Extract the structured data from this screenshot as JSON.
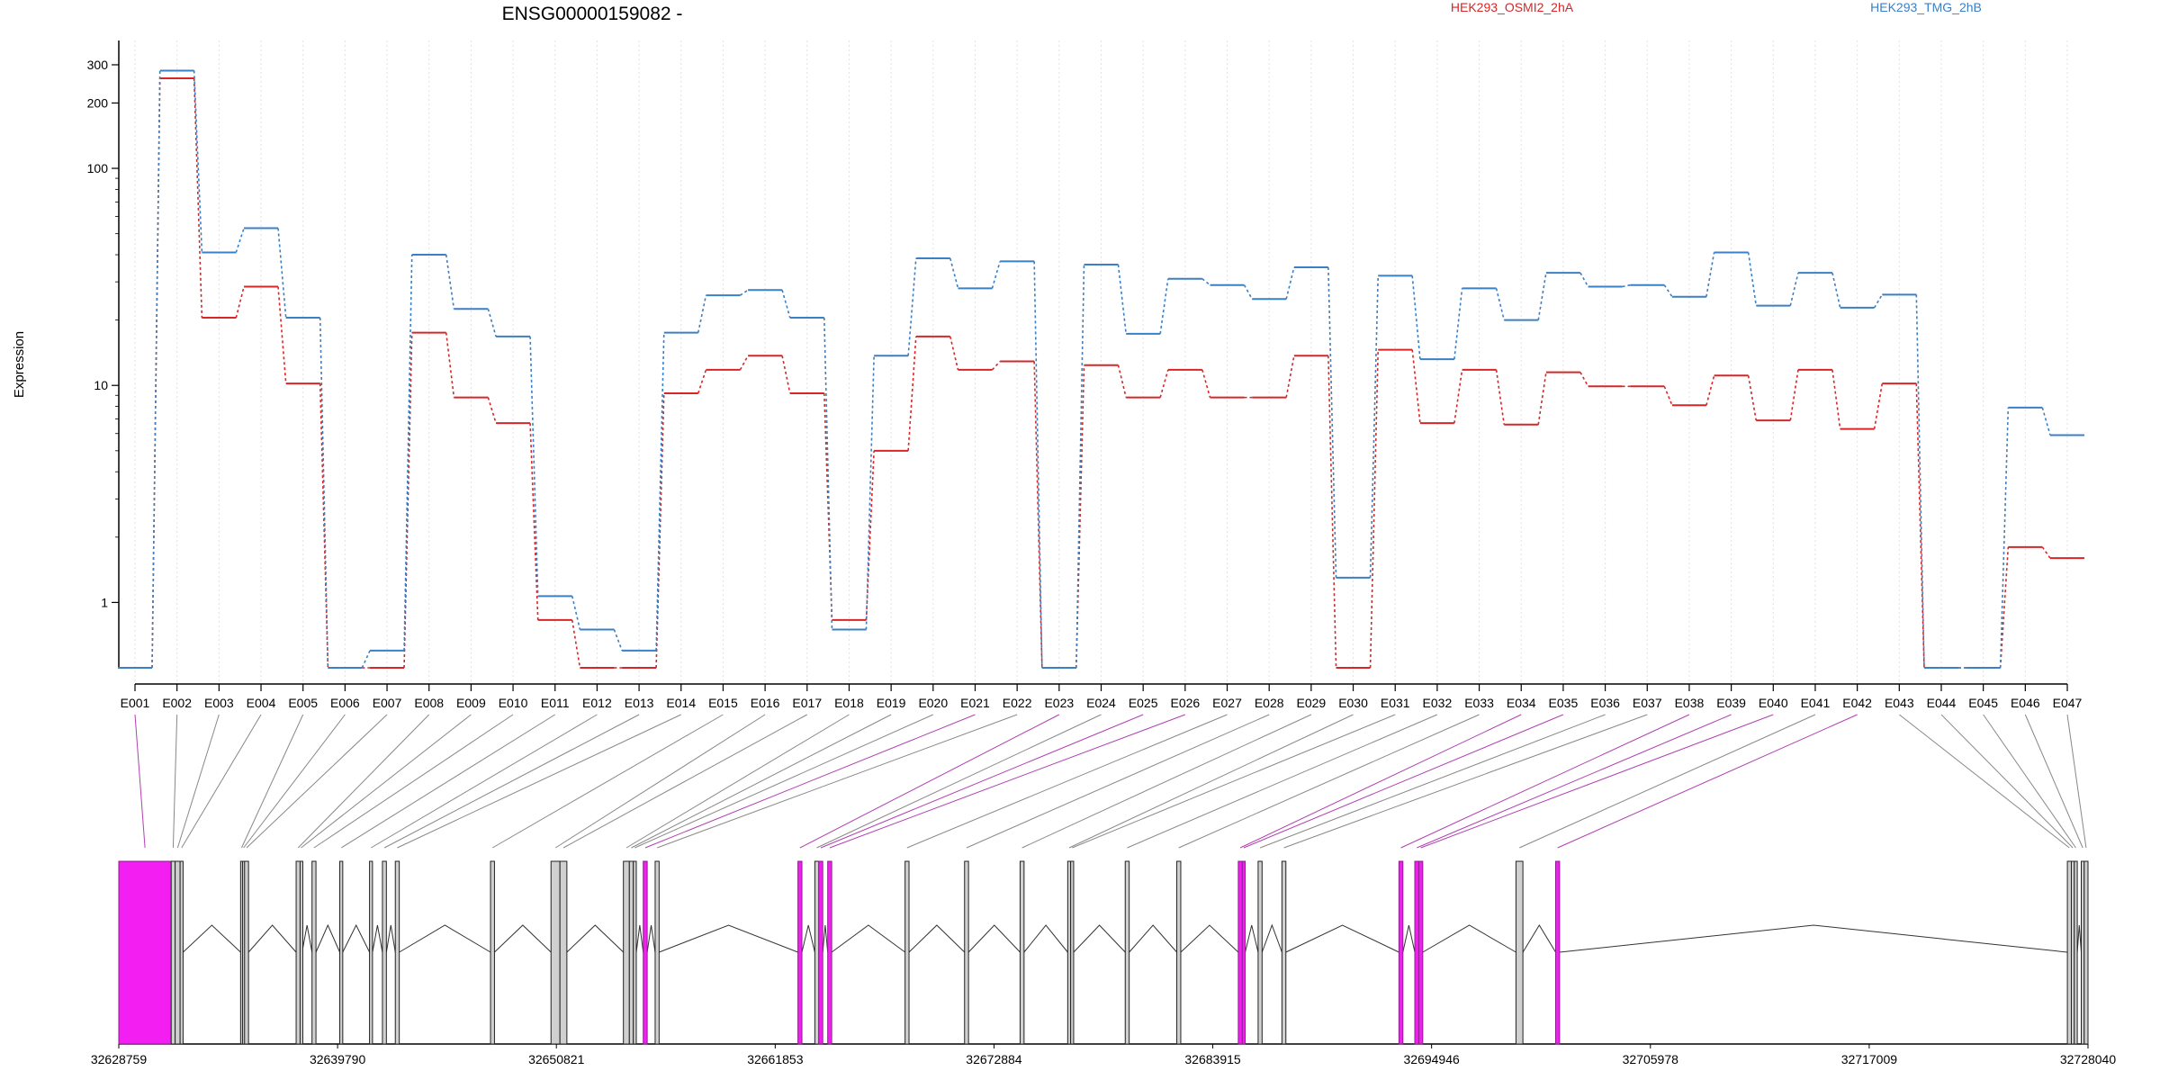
{
  "chart_data": {
    "type": "line",
    "title": "ENSG00000159082 -",
    "ylabel": "Expression",
    "y_scale": "log",
    "ylim": [
      0.5,
      330
    ],
    "grid": "vertical dotted lines at each exon",
    "legend_placement": "top",
    "yticks": [
      {
        "value": 1,
        "label": "1"
      },
      {
        "value": 10,
        "label": "10"
      },
      {
        "value": 100,
        "label": "100"
      },
      {
        "value": 200,
        "label": "200"
      },
      {
        "value": 300,
        "label": "300"
      }
    ],
    "categories": [
      "E001",
      "E002",
      "E003",
      "E004",
      "E005",
      "E006",
      "E007",
      "E008",
      "E009",
      "E010",
      "E011",
      "E012",
      "E013",
      "E014",
      "E015",
      "E016",
      "E017",
      "E018",
      "E019",
      "E020",
      "E021",
      "E022",
      "E023",
      "E024",
      "E025",
      "E026",
      "E027",
      "E028",
      "E029",
      "E030",
      "E031",
      "E032",
      "E033",
      "E034",
      "E035",
      "E036",
      "E037",
      "E038",
      "E039",
      "E040",
      "E041",
      "E042",
      "E043",
      "E044",
      "E045",
      "E046",
      "E047"
    ],
    "series": [
      {
        "name": "HEK293_OSMI2_2hA",
        "color": "#d62728",
        "values": [
          0.5,
          260,
          20.5,
          28.5,
          10.2,
          0.5,
          0.5,
          17.5,
          8.8,
          6.7,
          0.83,
          0.5,
          0.5,
          9.2,
          11.8,
          13.7,
          9.2,
          0.83,
          5.0,
          16.8,
          11.8,
          12.9,
          0.5,
          12.4,
          8.8,
          11.8,
          8.8,
          8.8,
          13.7,
          0.5,
          14.6,
          6.7,
          11.8,
          6.6,
          11.5,
          9.9,
          9.9,
          8.1,
          11.1,
          6.9,
          11.8,
          6.3,
          10.2,
          0.5,
          0.5,
          1.8,
          1.6
        ]
      },
      {
        "name": "HEK293_TMG_2hB",
        "color": "#3b7fc4",
        "values": [
          0.5,
          282,
          41,
          53,
          20.5,
          0.5,
          0.6,
          40,
          22.5,
          16.8,
          1.07,
          0.75,
          0.6,
          17.5,
          26,
          27.5,
          20.5,
          0.75,
          13.7,
          38.5,
          28,
          37.3,
          0.5,
          36,
          17.3,
          31,
          29,
          25,
          35,
          1.3,
          32,
          13.2,
          28,
          20,
          33,
          28.5,
          29,
          25.6,
          41,
          23.3,
          33,
          22.8,
          26.2,
          0.5,
          0.5,
          7.9,
          5.9
        ]
      }
    ],
    "gene_model": {
      "coordinate_ticks": [
        "32628759",
        "32639790",
        "32650821",
        "32661853",
        "32672884",
        "32683915",
        "32694946",
        "32705978",
        "32717009",
        "32728040"
      ],
      "exons": [
        {
          "id": "E001",
          "start": 32628759,
          "end": 32631400,
          "significant": true
        },
        {
          "id": "E002",
          "start": 32631400,
          "end": 32631600,
          "significant": false
        },
        {
          "id": "E003",
          "start": 32631600,
          "end": 32631850,
          "significant": false
        },
        {
          "id": "E004",
          "start": 32631850,
          "end": 32632000,
          "significant": false
        },
        {
          "id": "E005",
          "start": 32634900,
          "end": 32635000,
          "significant": false
        },
        {
          "id": "E006",
          "start": 32635000,
          "end": 32635100,
          "significant": false
        },
        {
          "id": "E007",
          "start": 32635100,
          "end": 32635300,
          "significant": false
        },
        {
          "id": "E008",
          "start": 32637700,
          "end": 32637900,
          "significant": false
        },
        {
          "id": "E009",
          "start": 32637900,
          "end": 32638000,
          "significant": false
        },
        {
          "id": "E010",
          "start": 32638500,
          "end": 32638700,
          "significant": false
        },
        {
          "id": "E011",
          "start": 32639900,
          "end": 32640050,
          "significant": false
        },
        {
          "id": "E012",
          "start": 32641400,
          "end": 32641550,
          "significant": false
        },
        {
          "id": "E013",
          "start": 32642050,
          "end": 32642250,
          "significant": false
        },
        {
          "id": "E014",
          "start": 32642700,
          "end": 32642900,
          "significant": false
        },
        {
          "id": "E015",
          "start": 32647500,
          "end": 32647700,
          "significant": false
        },
        {
          "id": "E016",
          "start": 32650550,
          "end": 32651000,
          "significant": false
        },
        {
          "id": "E017",
          "start": 32651000,
          "end": 32651350,
          "significant": false
        },
        {
          "id": "E018",
          "start": 32654200,
          "end": 32654500,
          "significant": false
        },
        {
          "id": "E019",
          "start": 32654500,
          "end": 32654700,
          "significant": false
        },
        {
          "id": "E020",
          "start": 32654700,
          "end": 32654850,
          "significant": false
        },
        {
          "id": "E021",
          "start": 32655200,
          "end": 32655400,
          "significant": true
        },
        {
          "id": "E022",
          "start": 32655800,
          "end": 32656000,
          "significant": false
        },
        {
          "id": "E023",
          "start": 32663000,
          "end": 32663200,
          "significant": true
        },
        {
          "id": "E024",
          "start": 32663850,
          "end": 32664050,
          "significant": false
        },
        {
          "id": "E025",
          "start": 32664050,
          "end": 32664250,
          "significant": true
        },
        {
          "id": "E026",
          "start": 32664500,
          "end": 32664700,
          "significant": true
        },
        {
          "id": "E027",
          "start": 32668400,
          "end": 32668600,
          "significant": false
        },
        {
          "id": "E028",
          "start": 32671400,
          "end": 32671600,
          "significant": false
        },
        {
          "id": "E029",
          "start": 32674200,
          "end": 32674400,
          "significant": false
        },
        {
          "id": "E030",
          "start": 32676600,
          "end": 32676750,
          "significant": false
        },
        {
          "id": "E031",
          "start": 32676750,
          "end": 32676900,
          "significant": false
        },
        {
          "id": "E032",
          "start": 32679500,
          "end": 32679700,
          "significant": false
        },
        {
          "id": "E033",
          "start": 32682100,
          "end": 32682300,
          "significant": false
        },
        {
          "id": "E034",
          "start": 32685200,
          "end": 32685400,
          "significant": true
        },
        {
          "id": "E035",
          "start": 32685400,
          "end": 32685550,
          "significant": true
        },
        {
          "id": "E036",
          "start": 32686200,
          "end": 32686400,
          "significant": false
        },
        {
          "id": "E037",
          "start": 32687400,
          "end": 32687600,
          "significant": false
        },
        {
          "id": "E038",
          "start": 32693300,
          "end": 32693500,
          "significant": true
        },
        {
          "id": "E039",
          "start": 32694100,
          "end": 32694300,
          "significant": true
        },
        {
          "id": "E040",
          "start": 32694300,
          "end": 32694500,
          "significant": true
        },
        {
          "id": "E041",
          "start": 32699200,
          "end": 32699550,
          "significant": false
        },
        {
          "id": "E042",
          "start": 32701200,
          "end": 32701400,
          "significant": true
        },
        {
          "id": "E043",
          "start": 32727000,
          "end": 32727200,
          "significant": false
        },
        {
          "id": "E044",
          "start": 32727200,
          "end": 32727350,
          "significant": false
        },
        {
          "id": "E045",
          "start": 32727350,
          "end": 32727500,
          "significant": false
        },
        {
          "id": "E046",
          "start": 32727700,
          "end": 32727850,
          "significant": false
        },
        {
          "id": "E047",
          "start": 32727850,
          "end": 32728040,
          "significant": false
        }
      ]
    }
  },
  "colors": {
    "series_a": "#d62728",
    "series_b": "#3b7fc4",
    "significant_exon": "#f21ef2",
    "significant_outline": "#8b1f8b",
    "exon_fill": "#d0d0d0",
    "grid": "#e0e0ea"
  }
}
